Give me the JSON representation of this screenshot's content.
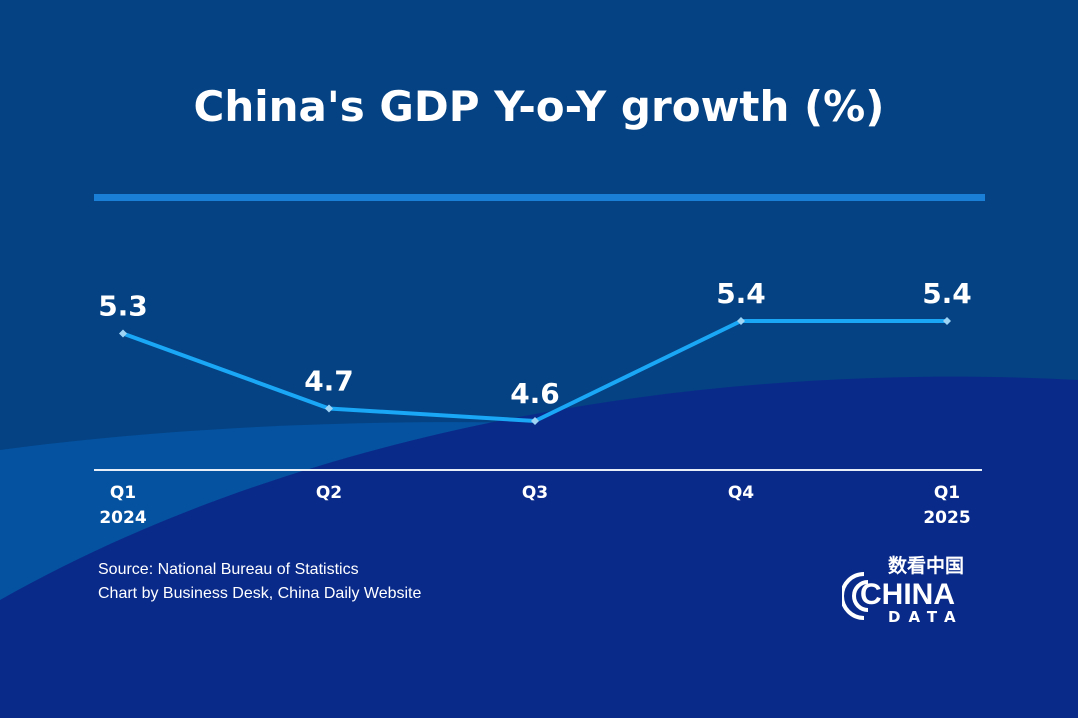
{
  "chart_data": {
    "type": "line",
    "title": "China's GDP Y-o-Y growth (%)",
    "categories": [
      "Q1\n2024",
      "Q2",
      "Q3",
      "Q4",
      "Q1\n2025"
    ],
    "category_lines": [
      [
        "Q1",
        "2024"
      ],
      [
        "Q2"
      ],
      [
        "Q3"
      ],
      [
        "Q4"
      ],
      [
        "Q1",
        "2025"
      ]
    ],
    "values": [
      5.3,
      4.7,
      4.6,
      5.4,
      5.4
    ],
    "data_labels": [
      "5.3",
      "4.7",
      "4.6",
      "5.4",
      "5.4"
    ],
    "grid": false,
    "line_color": "#1aa7f5"
  },
  "footer": {
    "source": "Source: National Bureau of Statistics",
    "credit": "Chart by Business Desk, China Daily Website"
  },
  "logo": {
    "cn": "数看中国",
    "main": "CHINA",
    "sub": "DATA"
  },
  "colors": {
    "background": "#044283",
    "bottom": "#0a2a8a",
    "accent": "#1a7fd6"
  }
}
